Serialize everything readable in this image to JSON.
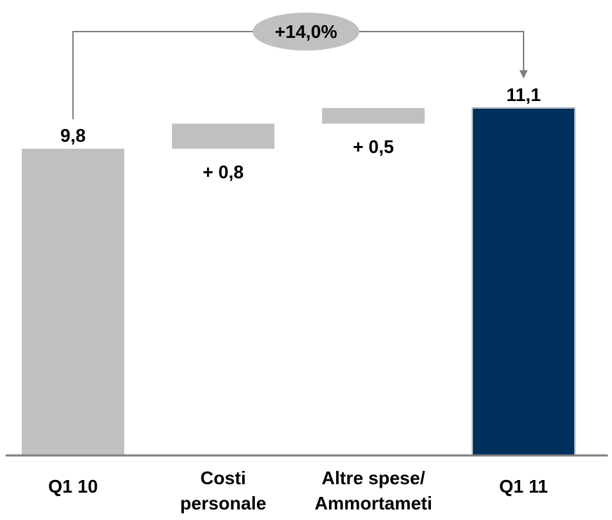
{
  "chart_data": {
    "type": "bar",
    "subtype": "waterfall",
    "categories": [
      "Q1 10",
      "Costi personale",
      "Altre spese/ Ammortameti",
      "Q1 11"
    ],
    "category_label_lines": [
      [
        "Q1 10"
      ],
      [
        "Costi",
        "personale"
      ],
      [
        "Altre spese/",
        "Ammortameti"
      ],
      [
        "Q1 11"
      ]
    ],
    "values": [
      9.8,
      0.8,
      0.5,
      11.1
    ],
    "bar_kinds": [
      "total",
      "delta",
      "delta",
      "total"
    ],
    "data_labels": [
      "9,8",
      "+ 0,8",
      "+ 0,5",
      "11,1"
    ],
    "annotation": {
      "text": "+14,0%",
      "from_category": 0,
      "to_category": 3
    },
    "title": "",
    "xlabel": "",
    "ylabel": "",
    "ylim": [
      0,
      11.6
    ],
    "grid": false,
    "legend": false,
    "colors": {
      "total_start": "#c0c0c0",
      "delta": "#c0c0c0",
      "total_end": "#00305e",
      "total_end_stroke": "#aab4c0",
      "axis": "#808080",
      "annotation_fill": "#c0c0c0",
      "connector": "#808080"
    }
  }
}
